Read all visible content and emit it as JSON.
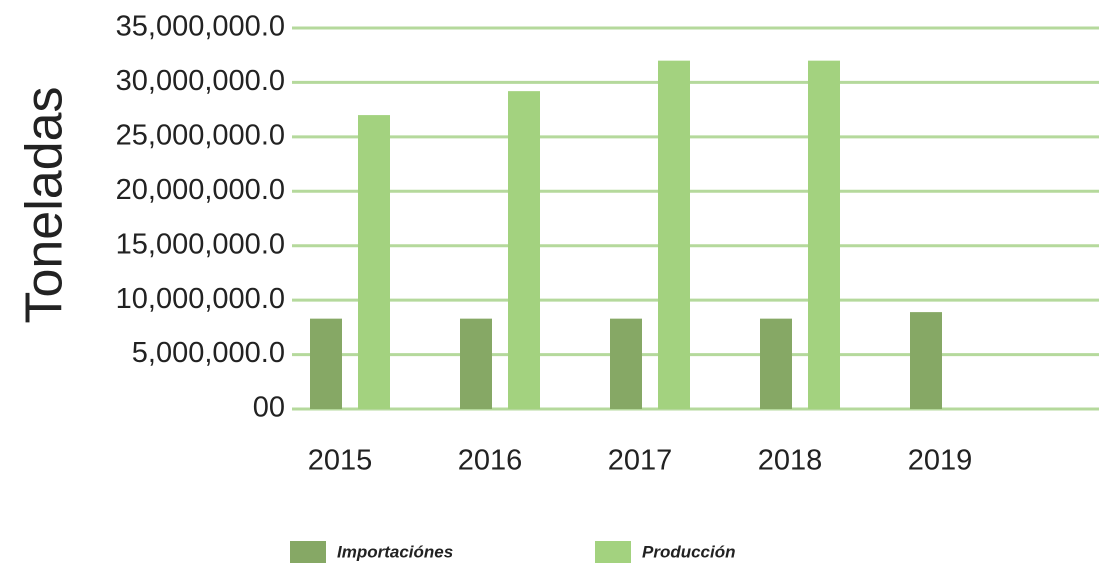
{
  "chart_data": {
    "type": "bar",
    "y_label": "Toneladas",
    "categories": [
      "2015",
      "2016",
      "2017",
      "2018",
      "2019"
    ],
    "series": [
      {
        "name": "Importaciónes",
        "color": "#86a865",
        "values": [
          8300000,
          8300000,
          8300000,
          8300000,
          8900000
        ]
      },
      {
        "name": "Producción",
        "color": "#a3d27f",
        "values": [
          27000000,
          29200000,
          32000000,
          32000000,
          null
        ]
      }
    ],
    "ylim": [
      0,
      35000000
    ],
    "yticks": [
      {
        "value": 0,
        "label": "00"
      },
      {
        "value": 5000000,
        "label": "5,000,000.0"
      },
      {
        "value": 10000000,
        "label": "10,000,000.0"
      },
      {
        "value": 15000000,
        "label": "15,000,000.0"
      },
      {
        "value": 20000000,
        "label": "20,000,000.0"
      },
      {
        "value": 25000000,
        "label": "25,000,000.0"
      },
      {
        "value": 30000000,
        "label": "30,000,000.0"
      },
      {
        "value": 35000000,
        "label": "35,000,000.0"
      }
    ],
    "grid": true,
    "grid_color": "#b5d99c",
    "legend": "bottom"
  }
}
